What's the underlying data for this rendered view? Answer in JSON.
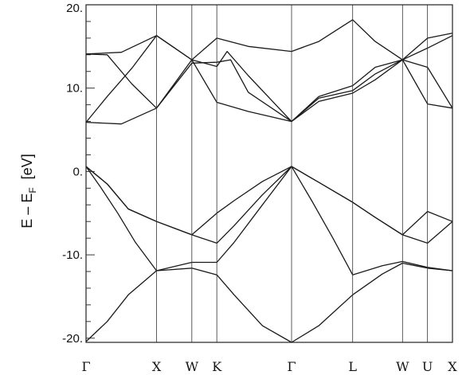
{
  "chart_data": {
    "type": "line",
    "ylabel_main": "E – E",
    "ylabel_sub": "F",
    "ylabel_unit": "[eV]",
    "ylim": [
      -20.5,
      20
    ],
    "yticks": [
      {
        "value": 20,
        "label": "20."
      },
      {
        "value": 10,
        "label": "10."
      },
      {
        "value": 0,
        "label": "0."
      },
      {
        "value": -10,
        "label": "-10."
      },
      {
        "value": -20,
        "label": "-20."
      }
    ],
    "ytick_minor_step": 2,
    "kpoints": [
      {
        "label": "Γ",
        "x": 0
      },
      {
        "label": "X",
        "x": 1
      },
      {
        "label": "W",
        "x": 1.5
      },
      {
        "label": "K",
        "x": 1.854
      },
      {
        "label": "Γ",
        "x": 2.914
      },
      {
        "label": "L",
        "x": 3.78
      },
      {
        "label": "W",
        "x": 4.487
      },
      {
        "label": "U",
        "x": 4.841
      },
      {
        "label": "X",
        "x": 5.195
      }
    ],
    "series": [
      {
        "points": [
          [
            0,
            0.6
          ],
          [
            0.3,
            -1.5
          ],
          [
            0.6,
            -4.5
          ],
          [
            1.0,
            -6.0
          ],
          [
            1.5,
            -7.6
          ],
          [
            1.854,
            -5.0
          ],
          [
            2.1,
            -3.5
          ],
          [
            2.5,
            -1.2
          ],
          [
            2.914,
            0.6
          ],
          [
            3.3,
            -1.3
          ],
          [
            3.78,
            -3.7
          ],
          [
            4.1,
            -5.5
          ],
          [
            4.487,
            -7.6
          ],
          [
            4.841,
            -4.8
          ],
          [
            5.195,
            -6.0
          ]
        ]
      },
      {
        "points": [
          [
            0,
            0.6
          ],
          [
            0.3,
            -1.5
          ],
          [
            0.6,
            -4.5
          ],
          [
            1.0,
            -6.0
          ],
          [
            1.5,
            -7.6
          ],
          [
            1.854,
            -8.6
          ],
          [
            2.1,
            -6.5
          ],
          [
            2.5,
            -2.8
          ],
          [
            2.914,
            0.6
          ],
          [
            3.3,
            -1.3
          ],
          [
            3.78,
            -3.7
          ],
          [
            4.1,
            -5.5
          ],
          [
            4.487,
            -7.6
          ],
          [
            4.841,
            -8.6
          ],
          [
            5.195,
            -6.0
          ]
        ]
      },
      {
        "points": [
          [
            0,
            0.6
          ],
          [
            0.2,
            -1.8
          ],
          [
            0.45,
            -5.0
          ],
          [
            0.7,
            -8.5
          ],
          [
            1.0,
            -11.9
          ],
          [
            1.5,
            -10.9
          ],
          [
            1.854,
            -10.9
          ],
          [
            2.1,
            -8.5
          ],
          [
            2.5,
            -4.0
          ],
          [
            2.914,
            0.6
          ],
          [
            3.2,
            -3.5
          ],
          [
            3.5,
            -8.0
          ],
          [
            3.78,
            -12.4
          ],
          [
            4.2,
            -11.3
          ],
          [
            4.487,
            -10.8
          ],
          [
            4.841,
            -11.5
          ],
          [
            5.195,
            -11.9
          ]
        ]
      },
      {
        "points": [
          [
            0,
            -20.4
          ],
          [
            0.3,
            -18.0
          ],
          [
            0.6,
            -14.8
          ],
          [
            1.0,
            -11.9
          ],
          [
            1.5,
            -11.6
          ],
          [
            1.854,
            -12.4
          ],
          [
            2.1,
            -14.8
          ],
          [
            2.5,
            -18.5
          ],
          [
            2.914,
            -20.5
          ],
          [
            3.3,
            -18.5
          ],
          [
            3.78,
            -14.8
          ],
          [
            4.2,
            -12.3
          ],
          [
            4.487,
            -11.0
          ],
          [
            4.841,
            -11.6
          ],
          [
            5.195,
            -11.9
          ]
        ]
      },
      {
        "points": [
          [
            0,
            5.9
          ],
          [
            0.5,
            5.7
          ],
          [
            1.0,
            7.6
          ],
          [
            1.5,
            13.4
          ],
          [
            1.854,
            8.3
          ],
          [
            2.3,
            7.2
          ],
          [
            2.914,
            6.0
          ],
          [
            3.3,
            8.4
          ],
          [
            3.78,
            9.4
          ],
          [
            4.1,
            11.0
          ],
          [
            4.487,
            13.4
          ],
          [
            4.841,
            12.5
          ],
          [
            5.195,
            7.6
          ]
        ]
      },
      {
        "points": [
          [
            0,
            5.9
          ],
          [
            0.3,
            9.0
          ],
          [
            0.65,
            12.4
          ],
          [
            1.0,
            16.3
          ],
          [
            1.5,
            13.4
          ],
          [
            1.854,
            12.6
          ],
          [
            2.0,
            14.4
          ],
          [
            2.3,
            11.5
          ],
          [
            2.914,
            6.0
          ],
          [
            3.3,
            9.0
          ],
          [
            3.78,
            10.3
          ],
          [
            4.1,
            12.5
          ],
          [
            4.487,
            13.4
          ],
          [
            4.841,
            8.1
          ],
          [
            5.195,
            7.6
          ]
        ]
      },
      {
        "points": [
          [
            0,
            14.1
          ],
          [
            0.3,
            14.0
          ],
          [
            0.65,
            10.5
          ],
          [
            1.0,
            7.6
          ],
          [
            1.5,
            13.0
          ],
          [
            1.854,
            13.1
          ],
          [
            2.05,
            13.4
          ],
          [
            2.3,
            9.5
          ],
          [
            2.914,
            6.0
          ],
          [
            3.3,
            8.8
          ],
          [
            3.78,
            9.7
          ],
          [
            4.1,
            11.7
          ],
          [
            4.487,
            13.4
          ],
          [
            4.841,
            14.8
          ],
          [
            5.195,
            16.3
          ]
        ]
      },
      {
        "points": [
          [
            0,
            14.1
          ],
          [
            0.5,
            14.3
          ],
          [
            1.0,
            16.3
          ],
          [
            1.5,
            13.4
          ],
          [
            1.854,
            16.0
          ],
          [
            2.3,
            15.0
          ],
          [
            2.914,
            14.4
          ],
          [
            3.3,
            15.6
          ],
          [
            3.78,
            18.2
          ],
          [
            4.1,
            15.6
          ],
          [
            4.487,
            13.4
          ],
          [
            4.841,
            16.0
          ],
          [
            5.195,
            16.6
          ]
        ]
      }
    ]
  }
}
